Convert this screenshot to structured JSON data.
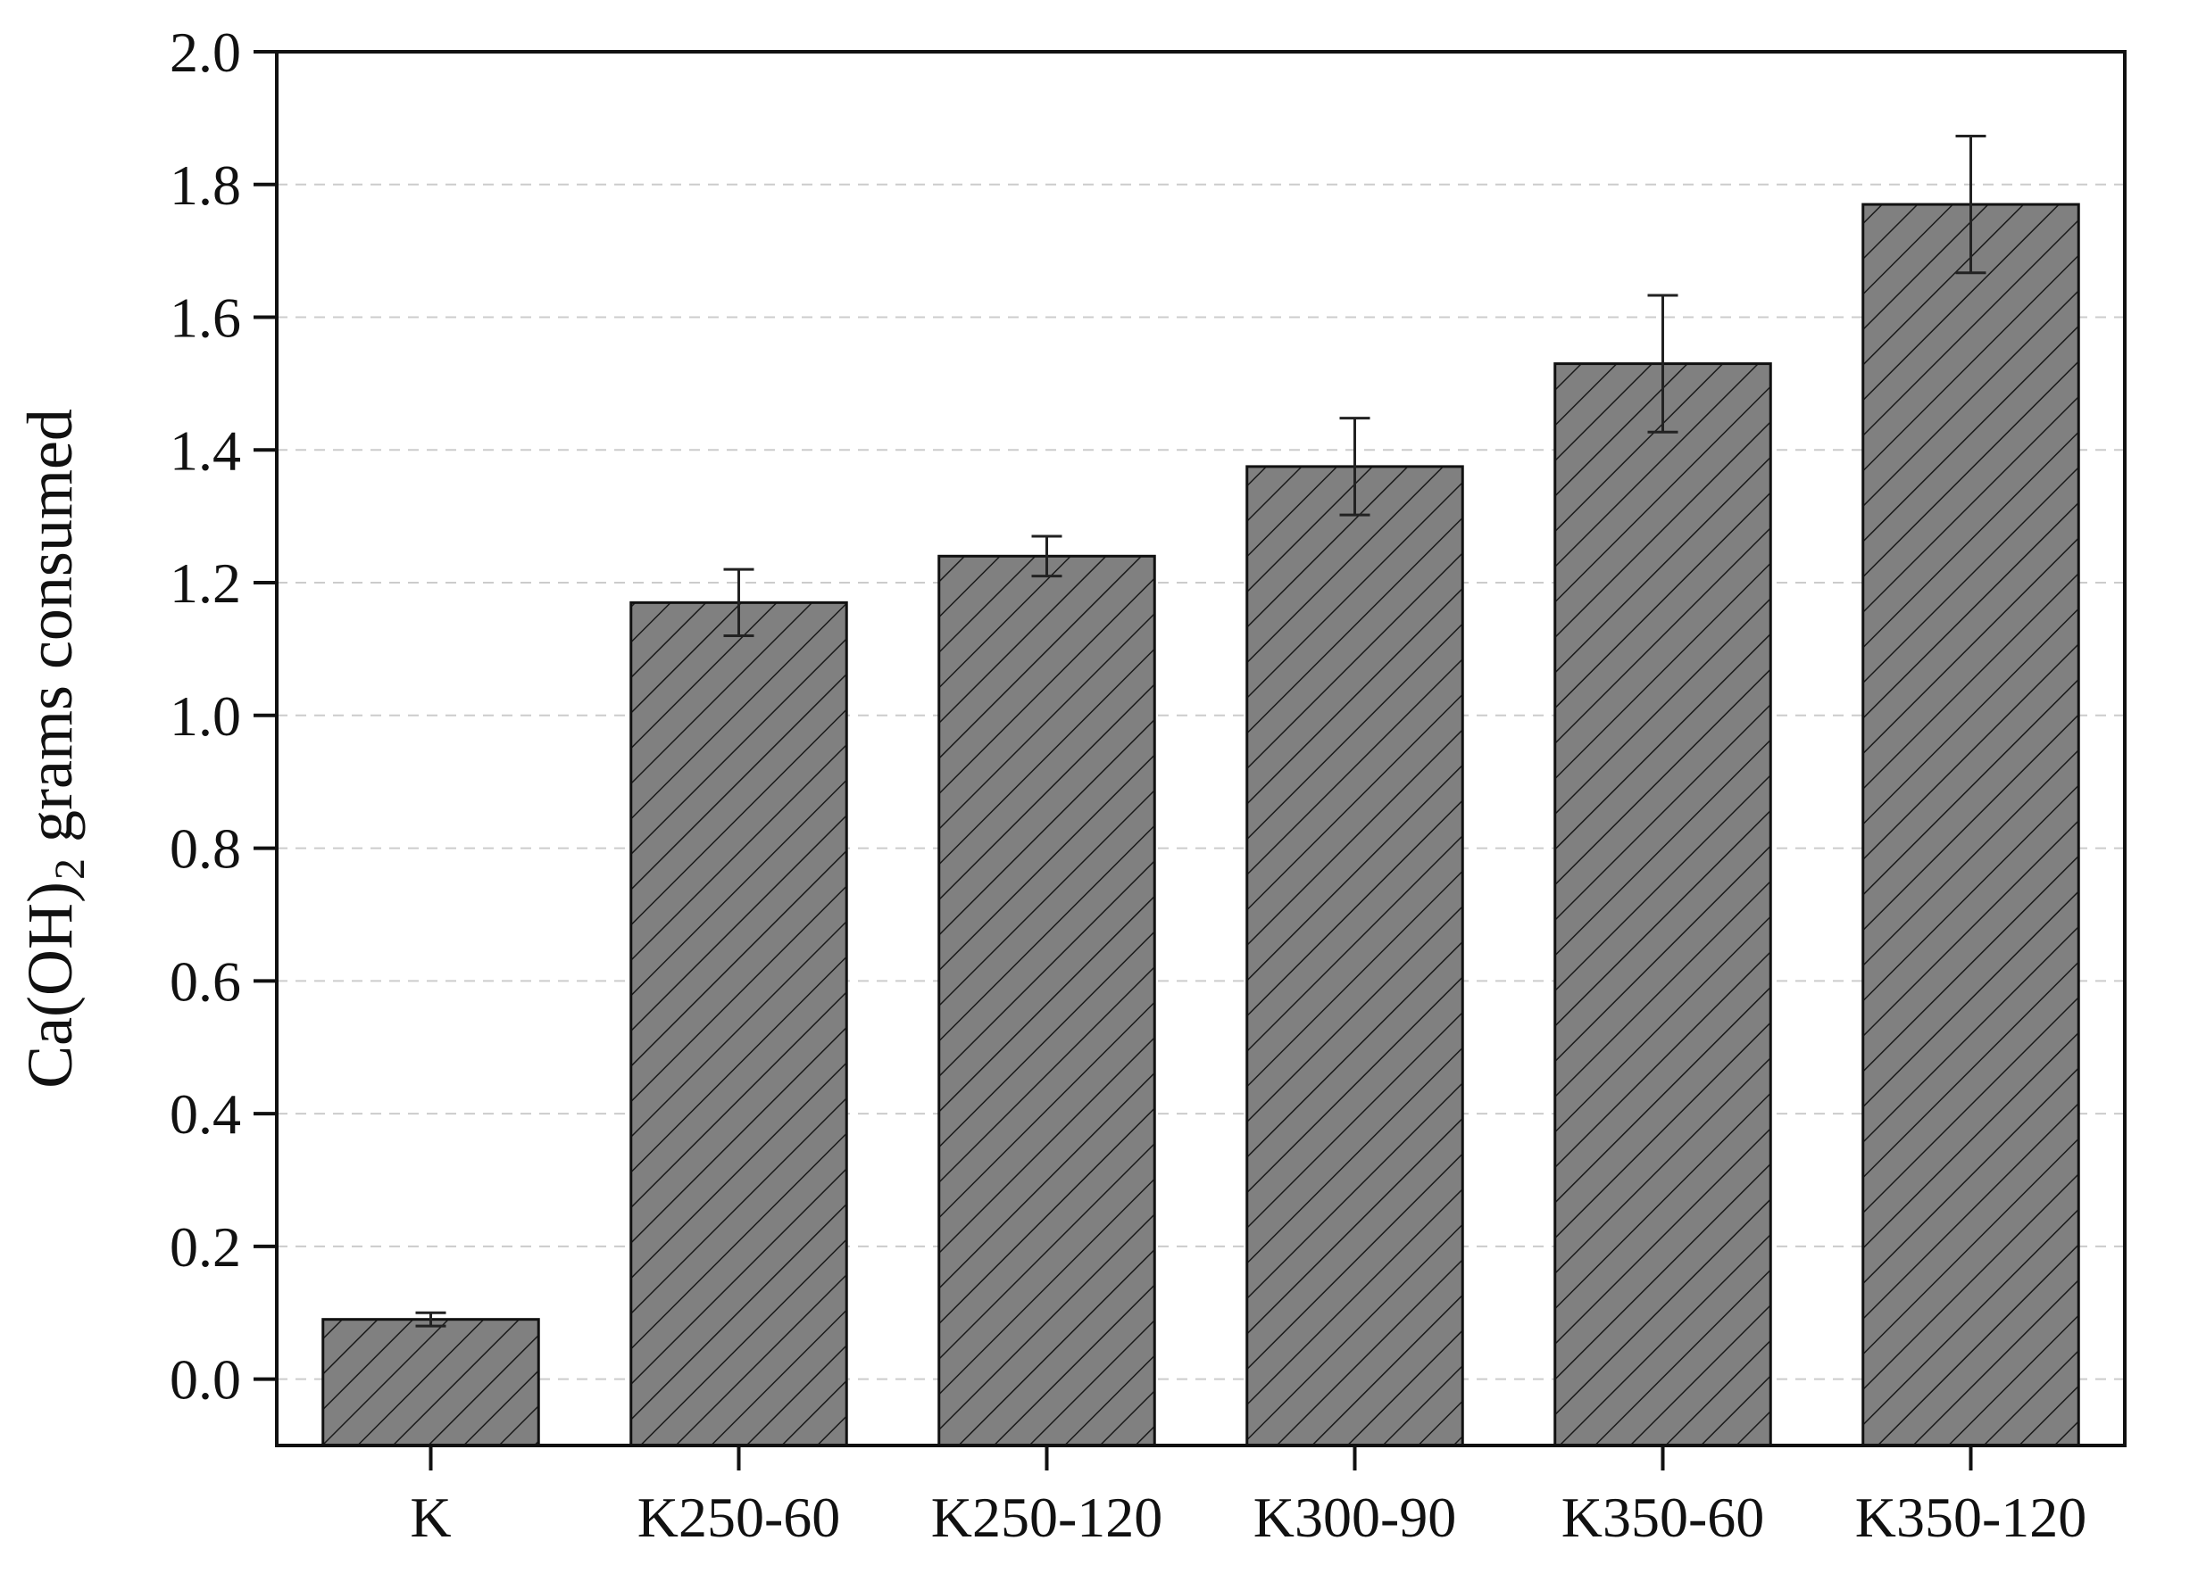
{
  "chart_data": {
    "type": "bar",
    "title": "",
    "ylabel": "Ca(OH)",
    "ylabel_subscript": "2",
    "ylabel_suffix": " grams consumed",
    "xlabel": "",
    "categories": [
      "K",
      "K250-60",
      "K250-120",
      "K300-90",
      "K350-60",
      "K350-120"
    ],
    "series": [
      {
        "values": [
          0.09,
          1.17,
          1.24,
          1.375,
          1.53,
          1.77
        ],
        "errors": [
          0.01,
          0.05,
          0.03,
          0.073,
          0.103,
          0.103
        ]
      }
    ],
    "ylim": [
      -0.1,
      2.0
    ],
    "yticks": [
      0.0,
      0.2,
      0.4,
      0.6,
      0.8,
      1.0,
      1.2,
      1.4,
      1.6,
      1.8,
      2.0
    ],
    "ytick_labels": [
      "0.0",
      "0.2",
      "0.4",
      "0.6",
      "0.8",
      "1.0",
      "1.2",
      "1.4",
      "1.6",
      "1.8",
      "2.0"
    ],
    "grid": "horizontal dashed",
    "bar_fill": "#808080",
    "bar_hatch": "diagonal",
    "legend": "none"
  }
}
